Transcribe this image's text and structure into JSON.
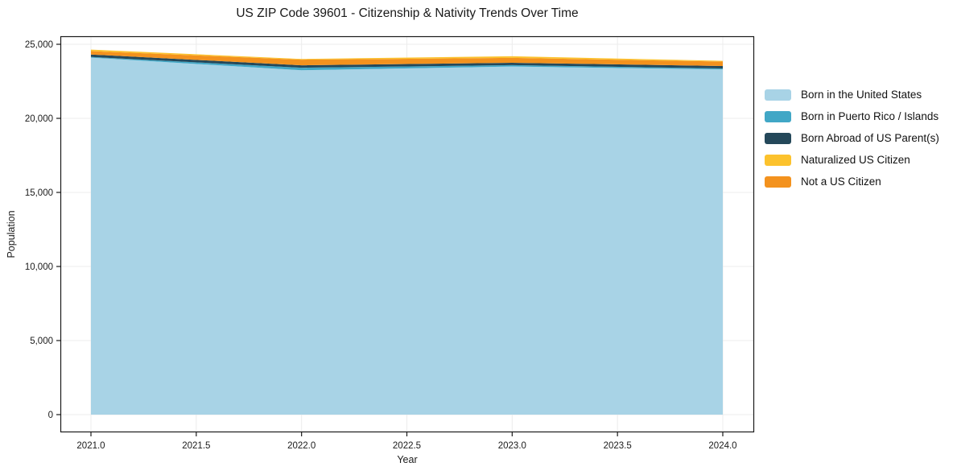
{
  "chart_data": {
    "type": "area",
    "stacked": true,
    "title": "US ZIP Code 39601 - Citizenship & Nativity Trends Over Time",
    "xlabel": "Year",
    "ylabel": "Population",
    "x": [
      2021,
      2022,
      2023,
      2024
    ],
    "series": [
      {
        "name": "Born in the United States",
        "color": "#a8d3e6",
        "values": [
          24100,
          23250,
          23500,
          23300
        ]
      },
      {
        "name": "Born in Puerto Rico / Islands",
        "color": "#41a7c6",
        "values": [
          40,
          170,
          90,
          70
        ]
      },
      {
        "name": "Born Abroad of US Parent(s)",
        "color": "#24485a",
        "values": [
          170,
          160,
          160,
          160
        ]
      },
      {
        "name": "Not a US Citizen",
        "color": "#f3921e",
        "values": [
          230,
          380,
          330,
          300
        ]
      },
      {
        "name": "Naturalized US Citizen",
        "color": "#fcc22d",
        "values": [
          100,
          50,
          110,
          50
        ]
      }
    ],
    "legend": [
      {
        "label": "Born in the United States",
        "color": "#a8d3e6"
      },
      {
        "label": "Born in Puerto Rico / Islands",
        "color": "#41a7c6"
      },
      {
        "label": "Born Abroad of US Parent(s)",
        "color": "#24485a"
      },
      {
        "label": "Naturalized US Citizen",
        "color": "#fcc22d"
      },
      {
        "label": "Not a US Citizen",
        "color": "#f3921e"
      }
    ],
    "x_ticks": [
      "2021.0",
      "2021.5",
      "2022.0",
      "2022.5",
      "2023.0",
      "2023.5",
      "2024.0"
    ],
    "y_ticks": [
      "0",
      "5,000",
      "10,000",
      "15,000",
      "20,000",
      "25,000"
    ],
    "xlim": [
      2020.85,
      2024.15
    ],
    "ylim": [
      -1200,
      25550
    ],
    "grid": true,
    "grid_color": "#ececec",
    "frame_color": "#1a1a1a",
    "legend_position": "right"
  }
}
